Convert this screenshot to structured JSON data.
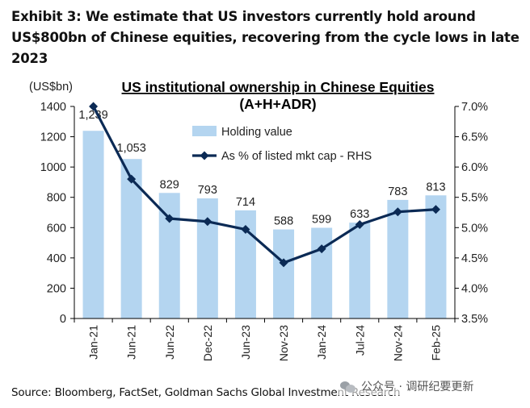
{
  "header": {
    "exhibit_title": "Exhibit 3: We estimate that US investors currently hold around US$800bn of Chinese equities, recovering from the cycle lows in late 2023"
  },
  "footer": {
    "source": "Source: Bloomberg, FactSet, Goldman Sachs Global Investment Research",
    "watermark_text": "公众号 · 调研纪要更新"
  },
  "chart_data": {
    "type": "bar",
    "title": "US institutional ownership in Chinese Equities",
    "subtitle": "(A+H+ADR)",
    "ylabel": "(US$bn)",
    "categories": [
      "Jan-21",
      "Jun-21",
      "Jun-22",
      "Dec-22",
      "Jun-23",
      "Nov-23",
      "Jan-24",
      "Jul-24",
      "Nov-24",
      "Feb-25"
    ],
    "series": [
      {
        "name": "Holding value",
        "type": "bar",
        "axis": "left",
        "values": [
          1239,
          1053,
          829,
          793,
          714,
          588,
          599,
          633,
          783,
          813
        ],
        "labels": [
          "1,239",
          "1,053",
          "829",
          "793",
          "714",
          "588",
          "599",
          "633",
          "783",
          "813"
        ],
        "color": "#b4d5f0"
      },
      {
        "name": "As % of listed mkt cap - RHS",
        "type": "line",
        "axis": "right",
        "values": [
          7.0,
          5.8,
          5.15,
          5.1,
          4.97,
          4.42,
          4.65,
          5.05,
          5.26,
          5.3
        ],
        "color": "#0b2a55"
      }
    ],
    "ylim": [
      0,
      1400
    ],
    "yticks": [
      0,
      200,
      400,
      600,
      800,
      1000,
      1200,
      1400
    ],
    "ytick_labels": [
      "0",
      "200",
      "400",
      "600",
      "800",
      "1000",
      "1200",
      "1400"
    ],
    "y2lim": [
      3.5,
      7.0
    ],
    "y2ticks": [
      3.5,
      4.0,
      4.5,
      5.0,
      5.5,
      6.0,
      6.5,
      7.0
    ],
    "y2tick_labels": [
      "3.5%",
      "4.0%",
      "4.5%",
      "5.0%",
      "5.5%",
      "6.0%",
      "6.5%",
      "7.0%"
    ],
    "legend": "top-center",
    "grid": false
  }
}
